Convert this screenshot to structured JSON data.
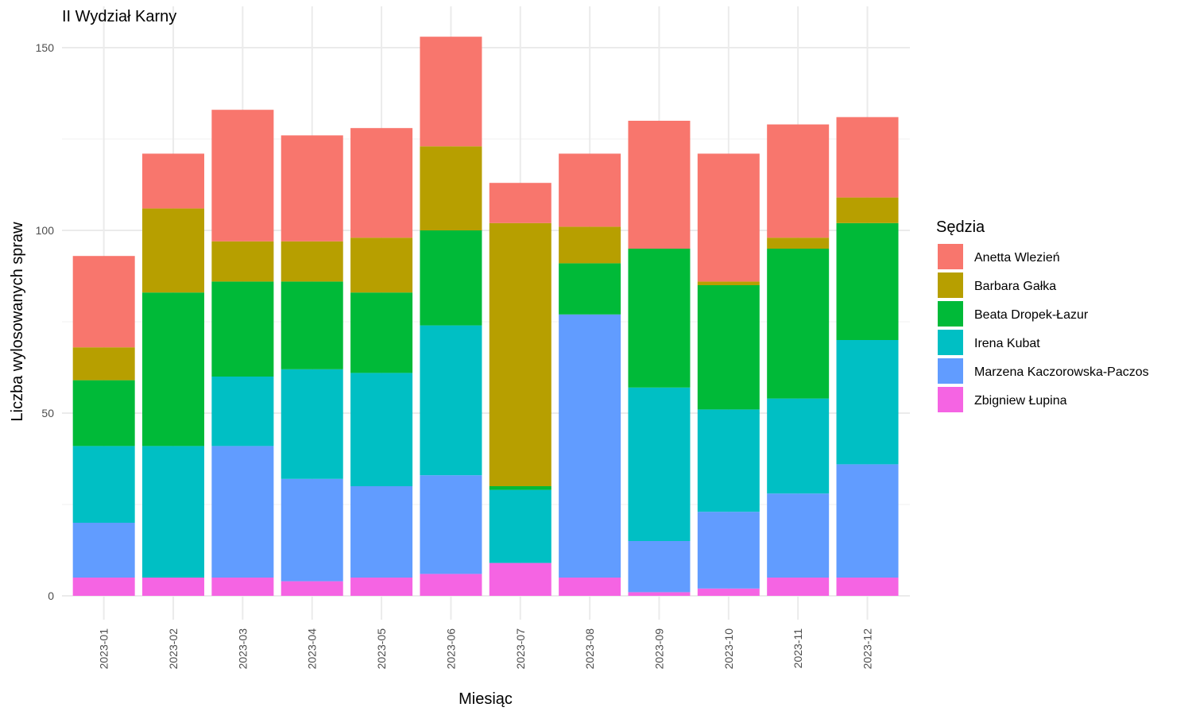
{
  "chart_data": {
    "type": "bar",
    "stacked": true,
    "title": "II Wydział Karny",
    "xlabel": "Miesiąc",
    "ylabel": "Liczba wylosowanych spraw",
    "ylim": [
      0,
      160
    ],
    "yticks": [
      0,
      50,
      100,
      150
    ],
    "grid": true,
    "legend": {
      "title": "Sędzia",
      "position": "right"
    },
    "categories": [
      "2023-01",
      "2023-02",
      "2023-03",
      "2023-04",
      "2023-05",
      "2023-06",
      "2023-07",
      "2023-08",
      "2023-09",
      "2023-10",
      "2023-11",
      "2023-12"
    ],
    "series": [
      {
        "name": "Zbigniew Łupina",
        "color": "#F564E3",
        "values": [
          5,
          5,
          5,
          4,
          5,
          6,
          9,
          5,
          1,
          2,
          5,
          5
        ]
      },
      {
        "name": "Marzena Kaczorowska-Paczos",
        "color": "#619CFF",
        "values": [
          15,
          0,
          36,
          28,
          25,
          27,
          0,
          72,
          14,
          21,
          23,
          31
        ]
      },
      {
        "name": "Irena Kubat",
        "color": "#00BFC4",
        "values": [
          21,
          36,
          19,
          30,
          31,
          41,
          20,
          0,
          42,
          28,
          26,
          34
        ]
      },
      {
        "name": "Beata Dropek-Łazur",
        "color": "#00BA38",
        "values": [
          18,
          42,
          26,
          24,
          22,
          26,
          1,
          14,
          38,
          34,
          41,
          32
        ]
      },
      {
        "name": "Barbara Gałka",
        "color": "#B79F00",
        "values": [
          9,
          23,
          11,
          11,
          15,
          23,
          72,
          10,
          0,
          1,
          3,
          7
        ]
      },
      {
        "name": "Anetta Wlezień",
        "color": "#F8766D",
        "values": [
          25,
          15,
          36,
          29,
          30,
          30,
          11,
          20,
          35,
          35,
          31,
          22
        ]
      }
    ],
    "legend_order": [
      "Anetta Wlezień",
      "Barbara Gałka",
      "Beata Dropek-Łazur",
      "Irena Kubat",
      "Marzena Kaczorowska-Paczos",
      "Zbigniew Łupina"
    ]
  }
}
